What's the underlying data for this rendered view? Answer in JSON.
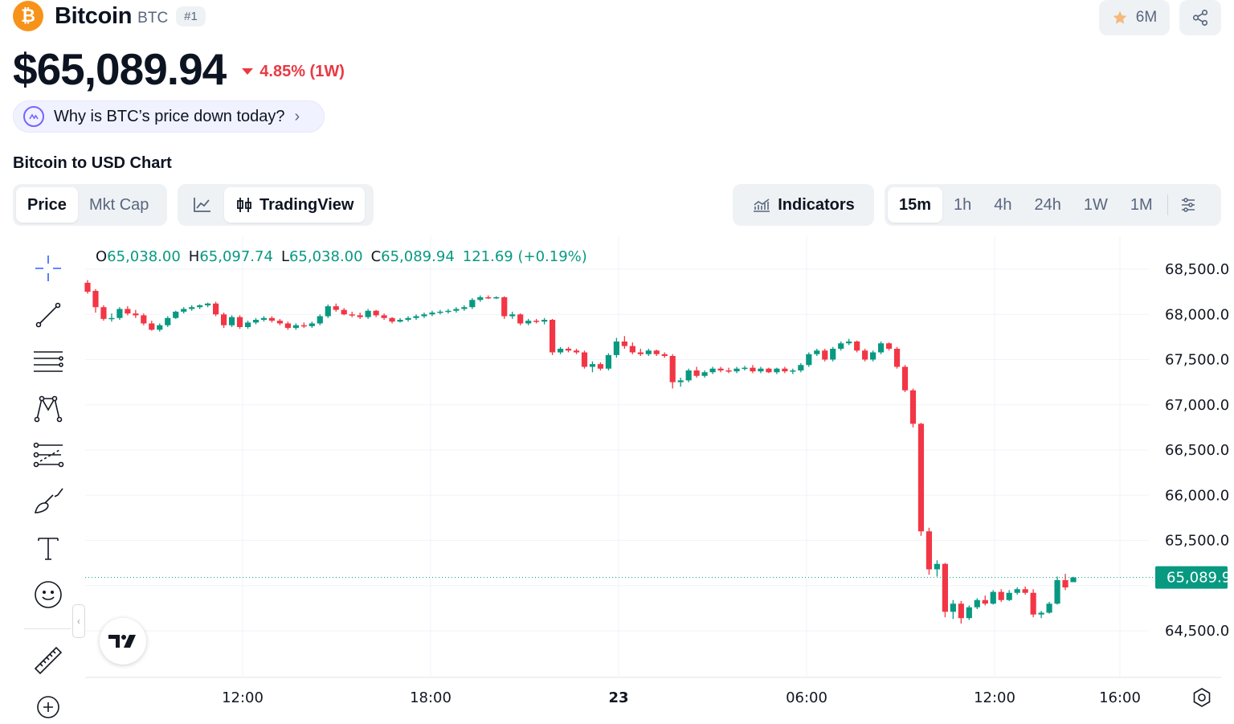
{
  "coin": {
    "logo_glyph": "₿",
    "name": "Bitcoin",
    "symbol": "BTC",
    "rank": "#1",
    "watchlist_count": "6M",
    "price": "$65,089.94",
    "change": "4.85% (1W)",
    "change_color": "#ea3943",
    "why_prompt": "Why is BTC’s price down today?"
  },
  "chart_section": {
    "title": "Bitcoin to USD Chart",
    "type_tabs": [
      "Price",
      "Mkt Cap"
    ],
    "active_type": "Price",
    "view_options": [
      "line-chart-icon",
      "TradingView"
    ],
    "active_view": "TradingView",
    "indicators_label": "Indicators",
    "timeframes": [
      "15m",
      "1h",
      "4h",
      "24h",
      "1W",
      "1M"
    ],
    "active_timeframe": "15m"
  },
  "ohlc_legend": {
    "o_key": "O",
    "o": "65,038.00",
    "h_key": "H",
    "h": "65,097.74",
    "l_key": "L",
    "l": "65,038.00",
    "c_key": "C",
    "c": "65,089.94",
    "change": "121.69 (+0.19%)"
  },
  "toolbar_icons": [
    "crosshair-icon",
    "trend-line-icon",
    "horizontal-lines-icon",
    "pattern-icon",
    "forecast-icon",
    "brush-icon",
    "text-icon",
    "emoji-icon",
    "ruler-icon",
    "zoom-in-icon"
  ],
  "colors": {
    "up": "#089981",
    "down": "#f23645",
    "grid": "#f0f3fa",
    "axis_text": "#131722"
  },
  "chart_data": {
    "type": "candlestick",
    "x_ticks": [
      "12:00",
      "18:00",
      "23",
      "06:00",
      "12:00",
      "16:00"
    ],
    "y_ticks": [
      "68,500.0",
      "68,000.0",
      "67,500.0",
      "67,000.0",
      "66,500.0",
      "66,000.0",
      "65,500.0",
      "64,500.0"
    ],
    "y_range": [
      64000,
      68900
    ],
    "last_price_label": "65,089.9",
    "last_price": 65089.94,
    "candles": [
      [
        68350,
        68380,
        68230,
        68250
      ],
      [
        68260,
        68280,
        68020,
        68080
      ],
      [
        68080,
        68100,
        67930,
        67950
      ],
      [
        67950,
        68010,
        67920,
        67960
      ],
      [
        67960,
        68080,
        67940,
        68060
      ],
      [
        68060,
        68090,
        67990,
        68010
      ],
      [
        68010,
        68050,
        67960,
        67990
      ],
      [
        67990,
        68010,
        67880,
        67900
      ],
      [
        67900,
        67930,
        67820,
        67830
      ],
      [
        67830,
        67900,
        67810,
        67880
      ],
      [
        67880,
        67980,
        67860,
        67960
      ],
      [
        67960,
        68040,
        67950,
        68030
      ],
      [
        68030,
        68080,
        68010,
        68060
      ],
      [
        68060,
        68100,
        68040,
        68080
      ],
      [
        68080,
        68110,
        68060,
        68100
      ],
      [
        68100,
        68130,
        68080,
        68120
      ],
      [
        68120,
        68140,
        67980,
        68000
      ],
      [
        68000,
        68020,
        67850,
        67880
      ],
      [
        67880,
        67990,
        67860,
        67970
      ],
      [
        67970,
        67990,
        67840,
        67860
      ],
      [
        67860,
        67930,
        67840,
        67910
      ],
      [
        67910,
        67960,
        67890,
        67940
      ],
      [
        67940,
        67980,
        67920,
        67960
      ],
      [
        67960,
        67980,
        67910,
        67930
      ],
      [
        67930,
        67950,
        67880,
        67900
      ],
      [
        67900,
        67920,
        67830,
        67850
      ],
      [
        67850,
        67900,
        67830,
        67880
      ],
      [
        67880,
        67910,
        67850,
        67870
      ],
      [
        67870,
        67920,
        67850,
        67900
      ],
      [
        67900,
        68000,
        67880,
        67980
      ],
      [
        67980,
        68110,
        67960,
        68090
      ],
      [
        68090,
        68120,
        68030,
        68050
      ],
      [
        68050,
        68070,
        67990,
        68000
      ],
      [
        68000,
        68030,
        67970,
        67990
      ],
      [
        67990,
        68020,
        67950,
        67970
      ],
      [
        67970,
        68060,
        67950,
        68040
      ],
      [
        68040,
        68050,
        67970,
        67990
      ],
      [
        67990,
        68010,
        67940,
        67960
      ],
      [
        67960,
        67970,
        67900,
        67920
      ],
      [
        67920,
        67960,
        67910,
        67940
      ],
      [
        67940,
        67980,
        67920,
        67960
      ],
      [
        67960,
        68000,
        67940,
        67980
      ],
      [
        67980,
        68020,
        67960,
        68000
      ],
      [
        68000,
        68040,
        67980,
        68020
      ],
      [
        68020,
        68050,
        68000,
        68030
      ],
      [
        68030,
        68060,
        68010,
        68040
      ],
      [
        68040,
        68080,
        68020,
        68060
      ],
      [
        68060,
        68100,
        68040,
        68080
      ],
      [
        68080,
        68180,
        68060,
        68160
      ],
      [
        68160,
        68210,
        68140,
        68190
      ],
      [
        68190,
        68210,
        68170,
        68180
      ],
      [
        68180,
        68200,
        68170,
        68190
      ],
      [
        68190,
        68200,
        67950,
        67980
      ],
      [
        67980,
        68030,
        67950,
        68000
      ],
      [
        68000,
        68010,
        67880,
        67900
      ],
      [
        67900,
        67950,
        67880,
        67930
      ],
      [
        67930,
        67950,
        67900,
        67920
      ],
      [
        67920,
        67960,
        67890,
        67940
      ],
      [
        67940,
        67950,
        67550,
        67580
      ],
      [
        67580,
        67640,
        67560,
        67620
      ],
      [
        67620,
        67640,
        67580,
        67600
      ],
      [
        67600,
        67620,
        67560,
        67580
      ],
      [
        67580,
        67600,
        67400,
        67420
      ],
      [
        67420,
        67480,
        67360,
        67450
      ],
      [
        67450,
        67470,
        67380,
        67400
      ],
      [
        67400,
        67570,
        67380,
        67550
      ],
      [
        67550,
        67740,
        67520,
        67700
      ],
      [
        67700,
        67760,
        67620,
        67650
      ],
      [
        67650,
        67690,
        67560,
        67580
      ],
      [
        67580,
        67620,
        67540,
        67560
      ],
      [
        67560,
        67620,
        67540,
        67600
      ],
      [
        67600,
        67610,
        67540,
        67560
      ],
      [
        67560,
        67580,
        67520,
        67540
      ],
      [
        67540,
        67560,
        67180,
        67250
      ],
      [
        67250,
        67300,
        67200,
        67270
      ],
      [
        67270,
        67400,
        67250,
        67380
      ],
      [
        67380,
        67420,
        67300,
        67320
      ],
      [
        67320,
        67380,
        67300,
        67360
      ],
      [
        67360,
        67420,
        67340,
        67400
      ],
      [
        67400,
        67420,
        67360,
        67380
      ],
      [
        67380,
        67410,
        67350,
        67370
      ],
      [
        67370,
        67420,
        67350,
        67400
      ],
      [
        67400,
        67430,
        67380,
        67410
      ],
      [
        67410,
        67440,
        67350,
        67370
      ],
      [
        67370,
        67420,
        67350,
        67400
      ],
      [
        67400,
        67410,
        67350,
        67360
      ],
      [
        67360,
        67410,
        67340,
        67400
      ],
      [
        67400,
        67420,
        67350,
        67370
      ],
      [
        67370,
        67400,
        67340,
        67380
      ],
      [
        67380,
        67460,
        67360,
        67440
      ],
      [
        67440,
        67580,
        67420,
        67560
      ],
      [
        67560,
        67620,
        67540,
        67600
      ],
      [
        67600,
        67620,
        67480,
        67500
      ],
      [
        67500,
        67640,
        67480,
        67620
      ],
      [
        67620,
        67700,
        67600,
        67680
      ],
      [
        67680,
        67730,
        67660,
        67700
      ],
      [
        67700,
        67710,
        67580,
        67600
      ],
      [
        67600,
        67620,
        67480,
        67500
      ],
      [
        67500,
        67600,
        67480,
        67580
      ],
      [
        67580,
        67700,
        67560,
        67680
      ],
      [
        67680,
        67690,
        67600,
        67620
      ],
      [
        67620,
        67640,
        67400,
        67420
      ],
      [
        67420,
        67440,
        67140,
        67160
      ],
      [
        67160,
        67180,
        66750,
        66790
      ],
      [
        66790,
        66800,
        65550,
        65600
      ],
      [
        65600,
        65640,
        65120,
        65180
      ],
      [
        65180,
        65280,
        65100,
        65240
      ],
      [
        65240,
        65250,
        64650,
        64710
      ],
      [
        64710,
        64840,
        64630,
        64800
      ],
      [
        64800,
        64830,
        64580,
        64640
      ],
      [
        64640,
        64780,
        64620,
        64760
      ],
      [
        64760,
        64860,
        64740,
        64840
      ],
      [
        64840,
        64890,
        64780,
        64800
      ],
      [
        64800,
        64950,
        64790,
        64930
      ],
      [
        64930,
        64960,
        64820,
        64840
      ],
      [
        64840,
        64950,
        64830,
        64920
      ],
      [
        64920,
        64980,
        64900,
        64960
      ],
      [
        64960,
        64990,
        64900,
        64920
      ],
      [
        64920,
        64960,
        64650,
        64680
      ],
      [
        64680,
        64720,
        64640,
        64700
      ],
      [
        64700,
        64820,
        64690,
        64800
      ],
      [
        64800,
        65100,
        64790,
        65060
      ],
      [
        65060,
        65130,
        64950,
        64980
      ],
      [
        65038,
        65097.74,
        65038,
        65089.94
      ]
    ]
  }
}
